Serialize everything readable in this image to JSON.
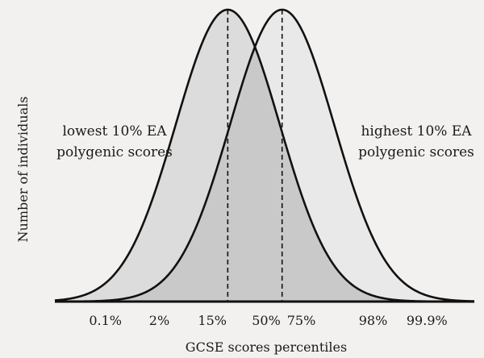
{
  "chart_data": {
    "type": "area",
    "title": "",
    "xlabel": "GCSE scores percentiles",
    "ylabel": "Number of individuals",
    "x_scale": "percentile (probit)",
    "xticks": [
      {
        "value": 0.1,
        "label": "0.1%"
      },
      {
        "value": 2,
        "label": "2%"
      },
      {
        "value": 15,
        "label": "15%"
      },
      {
        "value": 50,
        "label": "50%"
      },
      {
        "value": 75,
        "label": "75%"
      },
      {
        "value": 98,
        "label": "98%"
      },
      {
        "value": 99.9,
        "label": "99.9%"
      }
    ],
    "grid": false,
    "series": [
      {
        "label_lines": [
          "lowest 10% EA",
          "polygenic scores"
        ],
        "distribution": "normal",
        "peak_percentile": 23,
        "fill": "#dcdcdc"
      },
      {
        "label_lines": [
          "highest 10% EA",
          "polygenic scores"
        ],
        "distribution": "normal",
        "peak_percentile": 62,
        "fill": "#e9e9e9"
      }
    ],
    "overlap_fill": "#c9c9c9",
    "line_color": "#111111"
  }
}
